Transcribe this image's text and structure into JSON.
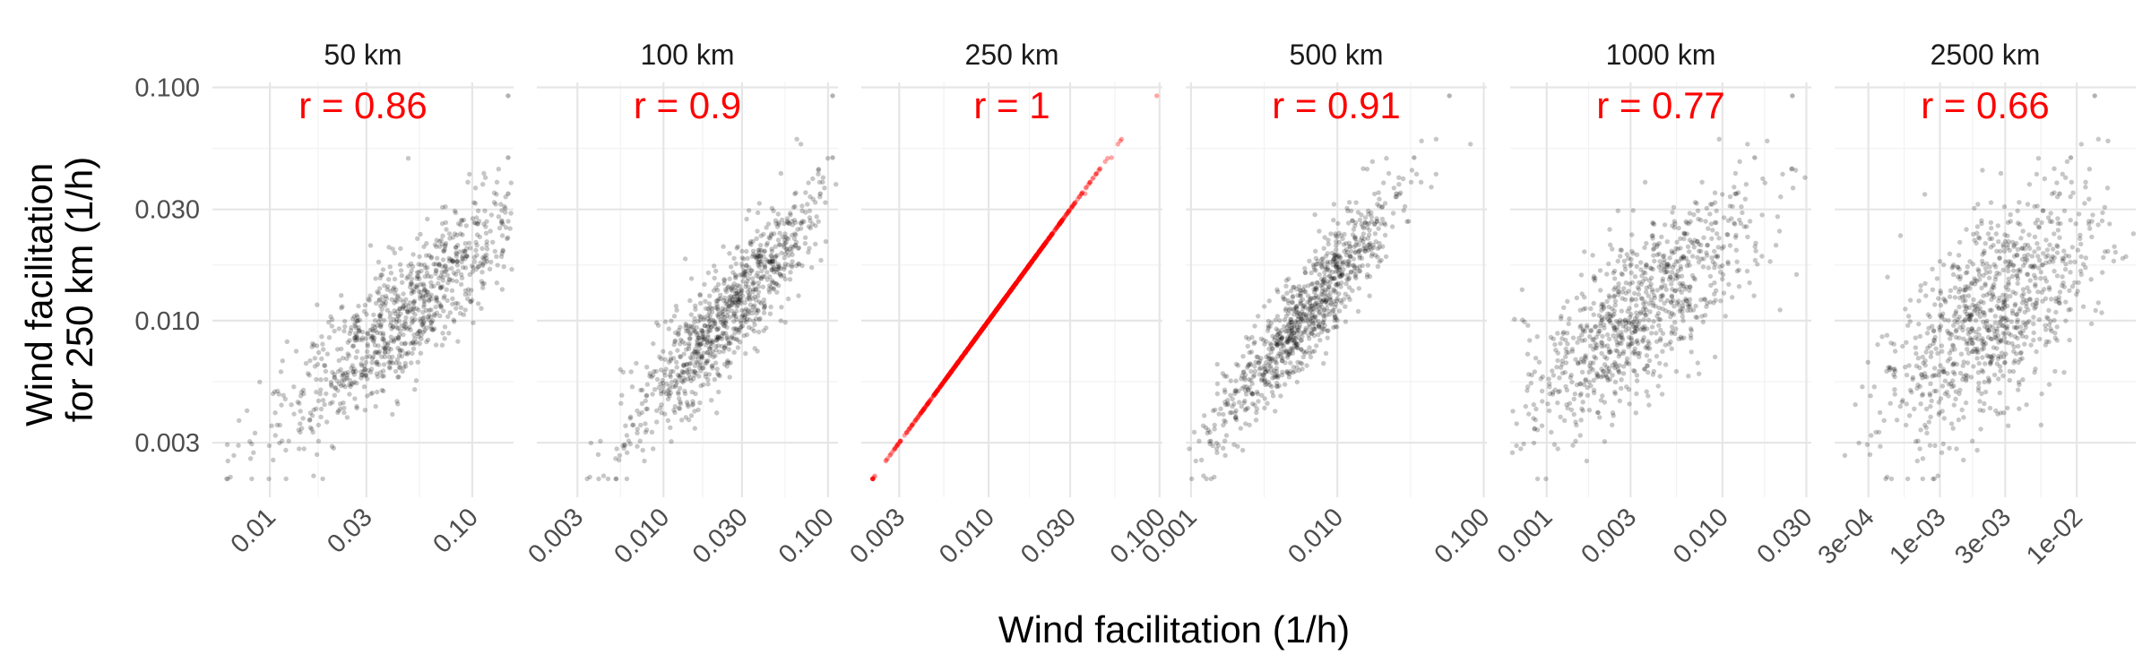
{
  "chart_data": {
    "type": "scatter",
    "xlabel": "Wind facilitation (1/h)",
    "ylabel": [
      "Wind facilitation",
      "for 250 km (1/h)"
    ],
    "y_scale": "log10",
    "x_scale": "log10",
    "ylim": [
      0.00175,
      0.105
    ],
    "yticks": [
      {
        "value": 0.003,
        "label": "0.003"
      },
      {
        "value": 0.01,
        "label": "0.010"
      },
      {
        "value": 0.03,
        "label": "0.030"
      },
      {
        "value": 0.1,
        "label": "0.100"
      }
    ],
    "point_color": "#000000",
    "highlight_color": "#ff0000",
    "panels": [
      {
        "title": "50 km",
        "r_label": "r = 0.86",
        "r": 0.86,
        "xlim": [
          0.0052,
          0.16
        ],
        "x_center": 0.045,
        "slope": 1.0,
        "xticks": [
          {
            "value": 0.01,
            "label": "0.01"
          },
          {
            "value": 0.03,
            "label": "0.03"
          },
          {
            "value": 0.1,
            "label": "0.10"
          }
        ]
      },
      {
        "title": "100 km",
        "r_label": "r = 0.9",
        "r": 0.9,
        "xlim": [
          0.0017,
          0.115
        ],
        "x_center": 0.024,
        "slope": 1.0,
        "xticks": [
          {
            "value": 0.003,
            "label": "0.003"
          },
          {
            "value": 0.01,
            "label": "0.010"
          },
          {
            "value": 0.03,
            "label": "0.030"
          },
          {
            "value": 0.1,
            "label": "0.100"
          }
        ]
      },
      {
        "title": "250 km",
        "r_label": "r = 1",
        "r": 1.0,
        "identity": true,
        "xlim": [
          0.0018,
          0.104
        ],
        "x_center": 0.011,
        "slope": 1.0,
        "xticks": [
          {
            "value": 0.003,
            "label": "0.003"
          },
          {
            "value": 0.01,
            "label": "0.010"
          },
          {
            "value": 0.03,
            "label": "0.030"
          },
          {
            "value": 0.1,
            "label": "0.100"
          }
        ]
      },
      {
        "title": "500 km",
        "r_label": "r = 0.91",
        "r": 0.91,
        "xlim": [
          0.00092,
          0.105
        ],
        "x_center": 0.006,
        "slope": 1.1,
        "xticks": [
          {
            "value": 0.001,
            "label": "0.001"
          },
          {
            "value": 0.01,
            "label": "0.010"
          },
          {
            "value": 0.1,
            "label": "0.100"
          }
        ]
      },
      {
        "title": "1000 km",
        "r_label": "r = 0.77",
        "r": 0.77,
        "xlim": [
          0.00062,
          0.032
        ],
        "x_center": 0.0032,
        "slope": 1.0,
        "xticks": [
          {
            "value": 0.001,
            "label": "0.001"
          },
          {
            "value": 0.003,
            "label": "0.003"
          },
          {
            "value": 0.01,
            "label": "0.010"
          },
          {
            "value": 0.03,
            "label": "0.030"
          }
        ]
      },
      {
        "title": "2500 km",
        "r_label": "r = 0.66",
        "r": 0.66,
        "xlim": [
          0.00017,
          0.027
        ],
        "x_center": 0.0024,
        "slope": 0.85,
        "xticks": [
          {
            "value": 0.0003,
            "label": "3e-04"
          },
          {
            "value": 0.001,
            "label": "1e-03"
          },
          {
            "value": 0.003,
            "label": "3e-03"
          },
          {
            "value": 0.01,
            "label": "1e-02"
          }
        ]
      }
    ]
  }
}
